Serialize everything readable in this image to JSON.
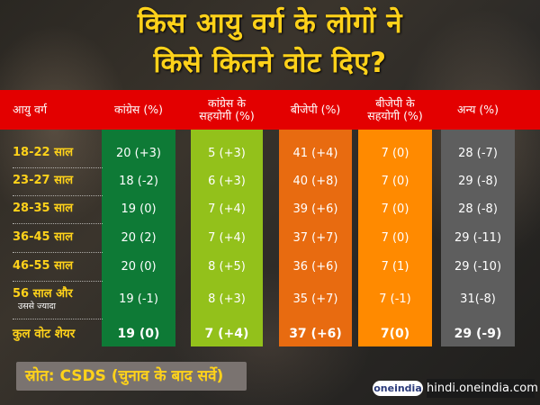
{
  "title": {
    "line1": "किस आयु वर्ग के लोगों ने",
    "line2": "किसे कितने वोट दिए?"
  },
  "colors": {
    "header": "#e30000",
    "title": "#ffd21a",
    "congress": "#0e7a36",
    "allies_congress": "#93c11b",
    "bjp": "#e86b10",
    "allies_bjp": "#ff8a00",
    "others": "#5e5e5e"
  },
  "table": {
    "headers": {
      "age": "आयु वर्ग",
      "congress": "कांग्रेस (%)",
      "congress_allies_l1": "कांग्रेस के",
      "congress_allies_l2": "सहयोगी (%)",
      "bjp": "बीजेपी (%)",
      "bjp_allies_l1": "बीजेपी के",
      "bjp_allies_l2": "सहयोगी (%)",
      "others": "अन्य (%)"
    },
    "rows": [
      {
        "label": "18-22 साल",
        "label2": "",
        "congress": "20 (+3)",
        "congress_allies": "5 (+3)",
        "bjp": "41 (+4)",
        "bjp_allies": "7 (0)",
        "others": "28 (-7)"
      },
      {
        "label": "23-27 साल",
        "label2": "",
        "congress": "18 (-2)",
        "congress_allies": "6 (+3)",
        "bjp": "40 (+8)",
        "bjp_allies": "7 (0)",
        "others": "29 (-8)"
      },
      {
        "label": "28-35 साल",
        "label2": "",
        "congress": "19 (0)",
        "congress_allies": "7 (+4)",
        "bjp": "39 (+6)",
        "bjp_allies": "7 (0)",
        "others": "28 (-8)"
      },
      {
        "label": "36-45 साल",
        "label2": "",
        "congress": "20 (2)",
        "congress_allies": "7 (+4)",
        "bjp": "37 (+7)",
        "bjp_allies": "7 (0)",
        "others": "29 (-11)"
      },
      {
        "label": "46-55 साल",
        "label2": "",
        "congress": "20 (0)",
        "congress_allies": "8 (+5)",
        "bjp": "36 (+6)",
        "bjp_allies": "7 (1)",
        "others": "29 (-10)"
      },
      {
        "label": "56 साल और",
        "label2": "उससे ज्यादा",
        "congress": "19 (-1)",
        "congress_allies": "8 (+3)",
        "bjp": "35 (+7)",
        "bjp_allies": "7 (-1)",
        "others": "31(-8)"
      },
      {
        "label": "कुल वोट शेयर",
        "label2": "",
        "congress": "19 (0)",
        "congress_allies": "7 (+4)",
        "bjp": "37 (+6)",
        "bjp_allies": "7(0)",
        "others": "29 (-9)"
      }
    ]
  },
  "source": "स्रोत: CSDS (चुनाव के बाद सर्वे)",
  "logo": "oneindia",
  "site": "hindi.oneindia.com"
}
